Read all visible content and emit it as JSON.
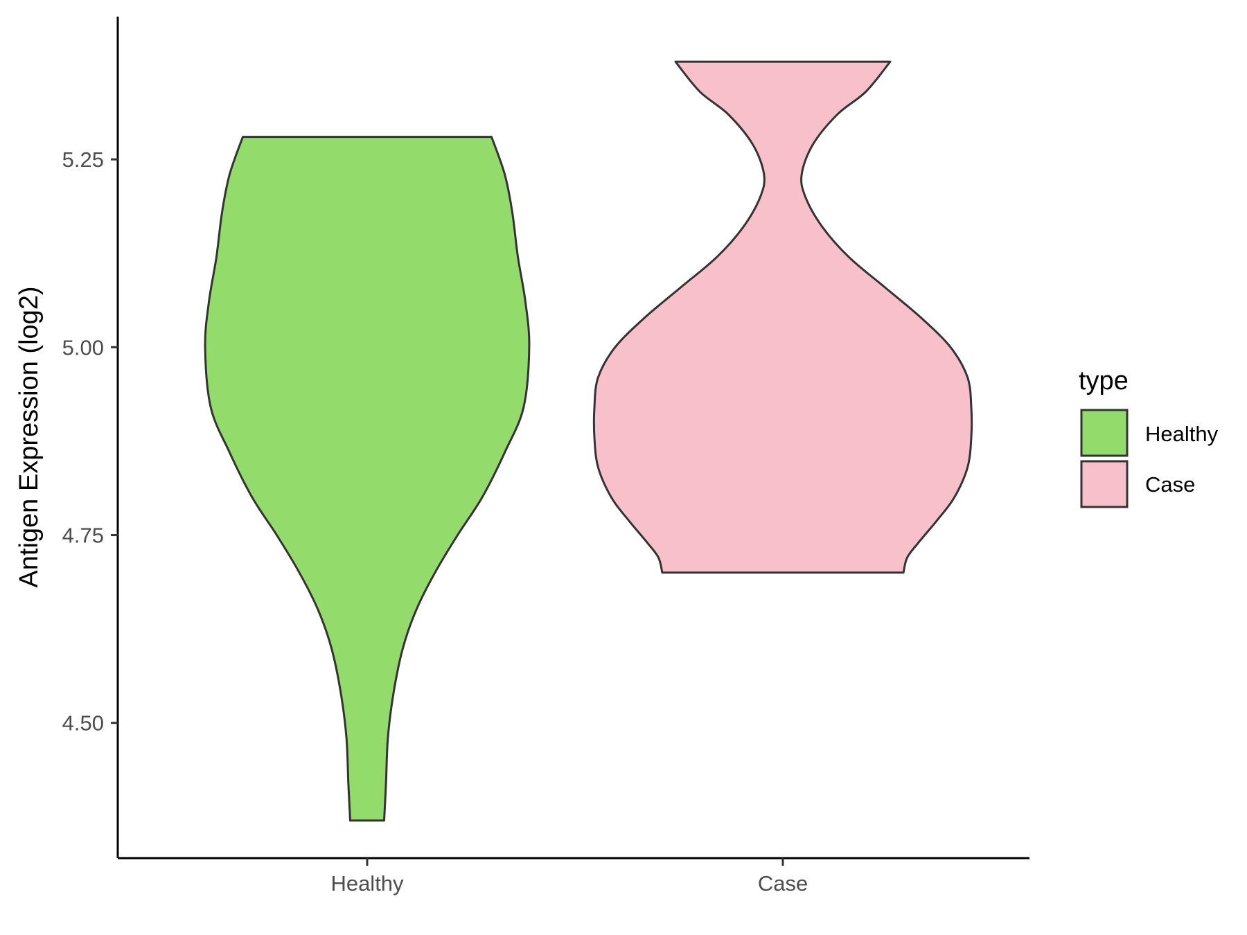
{
  "chart_data": {
    "type": "violin",
    "title": "",
    "xlabel": "",
    "ylabel": "Antigen Expression (log2)",
    "ylim": [
      4.32,
      5.44
    ],
    "yticks": [
      "4.50",
      "4.75",
      "5.00",
      "5.25"
    ],
    "categories": [
      "Healthy",
      "Case"
    ],
    "series": [
      {
        "name": "Healthy",
        "color": "#93DB6B",
        "min": 4.37,
        "max": 5.28,
        "density": [
          [
            4.37,
            0.09
          ],
          [
            4.42,
            0.1
          ],
          [
            4.48,
            0.11
          ],
          [
            4.54,
            0.14
          ],
          [
            4.6,
            0.19
          ],
          [
            4.65,
            0.26
          ],
          [
            4.7,
            0.36
          ],
          [
            4.75,
            0.48
          ],
          [
            4.8,
            0.61
          ],
          [
            4.86,
            0.73
          ],
          [
            4.92,
            0.83
          ],
          [
            5.0,
            0.86
          ],
          [
            5.06,
            0.84
          ],
          [
            5.12,
            0.8
          ],
          [
            5.18,
            0.77
          ],
          [
            5.23,
            0.73
          ],
          [
            5.28,
            0.66
          ]
        ]
      },
      {
        "name": "Case",
        "color": "#F8C0CB",
        "min": 4.7,
        "max": 5.38,
        "density": [
          [
            4.7,
            0.64
          ],
          [
            4.72,
            0.66
          ],
          [
            4.74,
            0.72
          ],
          [
            4.77,
            0.82
          ],
          [
            4.8,
            0.91
          ],
          [
            4.84,
            0.98
          ],
          [
            4.88,
            1.0
          ],
          [
            4.92,
            1.0
          ],
          [
            4.96,
            0.98
          ],
          [
            5.0,
            0.89
          ],
          [
            5.04,
            0.73
          ],
          [
            5.08,
            0.54
          ],
          [
            5.12,
            0.35
          ],
          [
            5.16,
            0.21
          ],
          [
            5.2,
            0.12
          ],
          [
            5.23,
            0.1
          ],
          [
            5.27,
            0.16
          ],
          [
            5.31,
            0.29
          ],
          [
            5.34,
            0.44
          ],
          [
            5.38,
            0.57
          ]
        ]
      }
    ],
    "legend": {
      "title": "type",
      "position": "right",
      "entries": [
        "Healthy",
        "Case"
      ]
    },
    "grid": false
  }
}
